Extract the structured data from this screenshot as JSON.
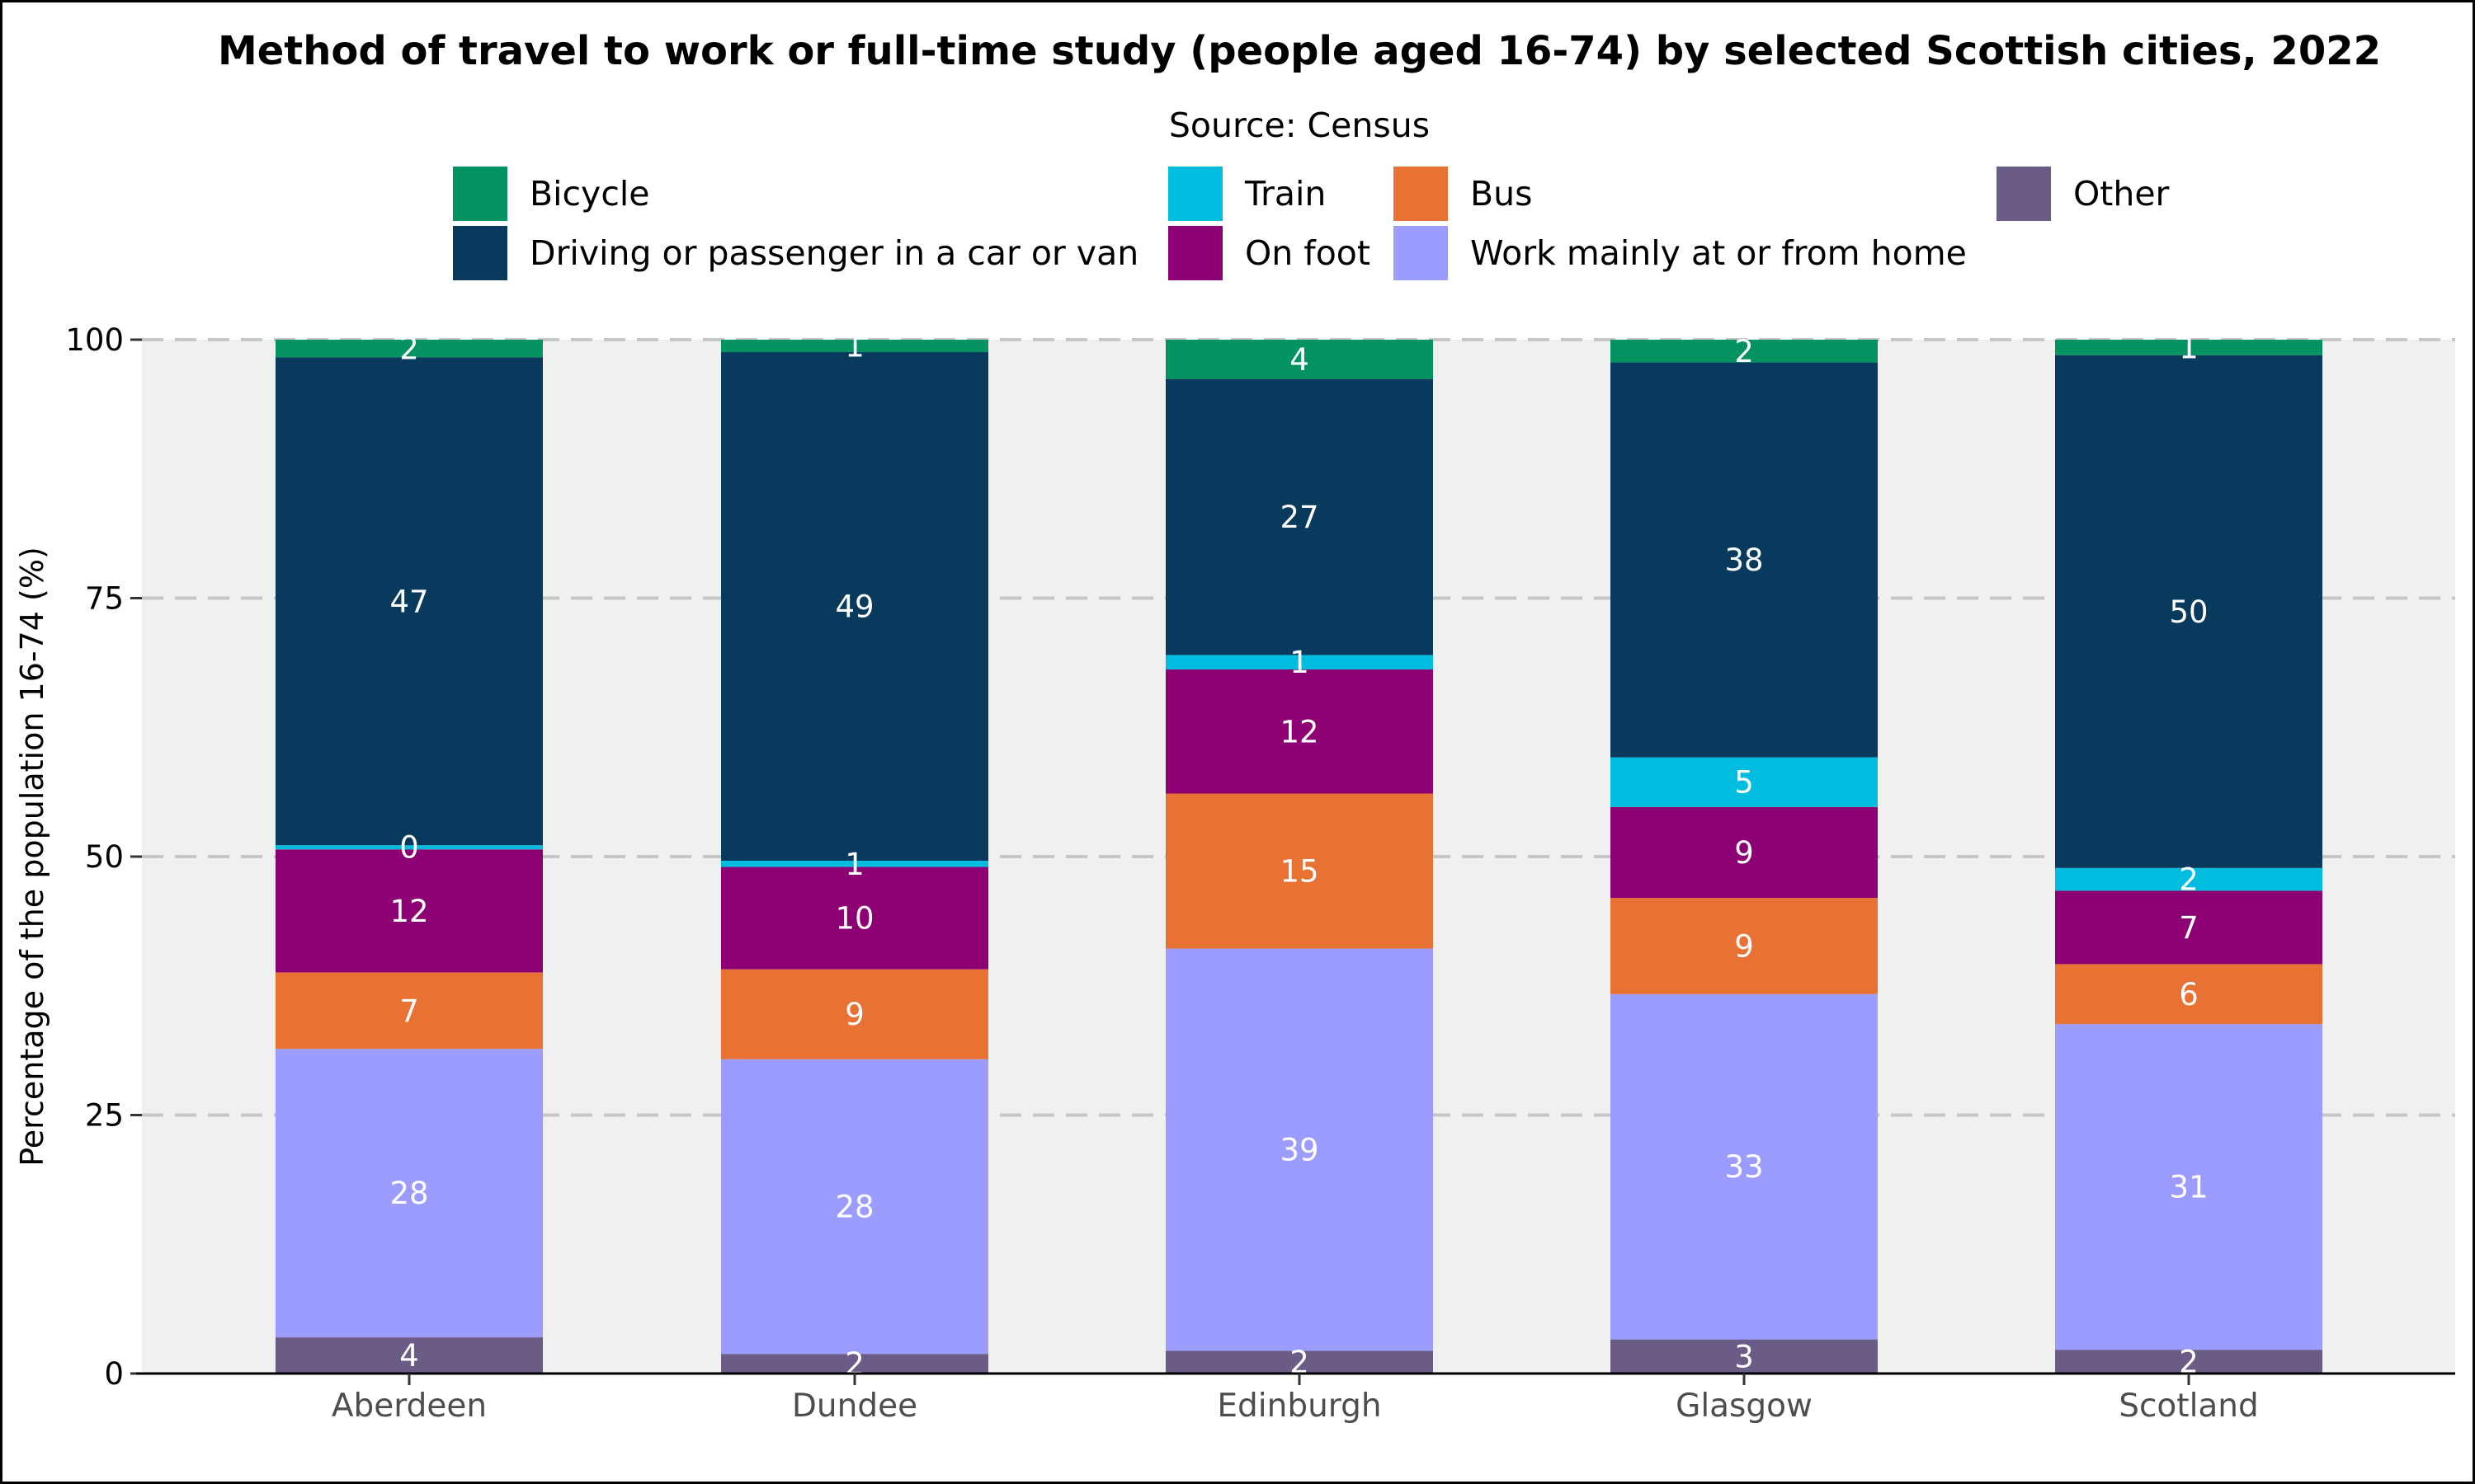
{
  "chart_data": {
    "type": "bar",
    "stacked": true,
    "title": "Method of travel to work or full-time study (people aged 16-74) by selected Scottish cities, 2022",
    "subtitle": "Source: Census",
    "xlabel": "",
    "ylabel": "Percentage of the population 16-74 (%)",
    "ylim": [
      0,
      100
    ],
    "yticks": [
      0,
      25,
      50,
      75,
      100
    ],
    "grid": "horizontal dashed",
    "legend_position": "top",
    "categories": [
      "Aberdeen",
      "Dundee",
      "Edinburgh",
      "Glasgow",
      "Scotland"
    ],
    "legend_order": [
      "Bicycle",
      "Train",
      "Bus",
      "Other",
      "Driving or passenger in a car or van",
      "On foot",
      "Work mainly at or from home"
    ],
    "series": [
      {
        "name": "Other",
        "color": "#6b5c87",
        "values": [
          3.5,
          1.9,
          2.2,
          3.3,
          2.3
        ],
        "labels": [
          "4",
          "2",
          "2",
          "3",
          "2"
        ]
      },
      {
        "name": "Work mainly at or from home",
        "color": "#9c9cff",
        "values": [
          27.9,
          28.5,
          38.9,
          33.4,
          31.5
        ],
        "labels": [
          "28",
          "28",
          "39",
          "33",
          "31"
        ]
      },
      {
        "name": "Bus",
        "color": "#e87233",
        "values": [
          7.4,
          8.7,
          15.0,
          9.3,
          5.8
        ],
        "labels": [
          "7",
          "9",
          "15",
          "9",
          "6"
        ]
      },
      {
        "name": "On foot",
        "color": "#8d0074",
        "values": [
          11.9,
          9.9,
          12.0,
          8.8,
          7.1
        ],
        "labels": [
          "12",
          "10",
          "12",
          "9",
          "7"
        ]
      },
      {
        "name": "Train",
        "color": "#00bde0",
        "values": [
          0.4,
          0.6,
          1.4,
          4.8,
          2.2
        ],
        "labels": [
          "0",
          "1",
          "1",
          "5",
          "2"
        ]
      },
      {
        "name": "Driving or passenger in a car or van",
        "color": "#073a5c",
        "values": [
          47.2,
          49.2,
          26.7,
          38.2,
          49.6
        ],
        "labels": [
          "47",
          "49",
          "27",
          "38",
          "50"
        ]
      },
      {
        "name": "Bicycle",
        "color": "#029361",
        "values": [
          1.7,
          1.2,
          3.8,
          2.2,
          1.5
        ],
        "labels": [
          "2",
          "1",
          "4",
          "2",
          "1"
        ]
      }
    ]
  }
}
